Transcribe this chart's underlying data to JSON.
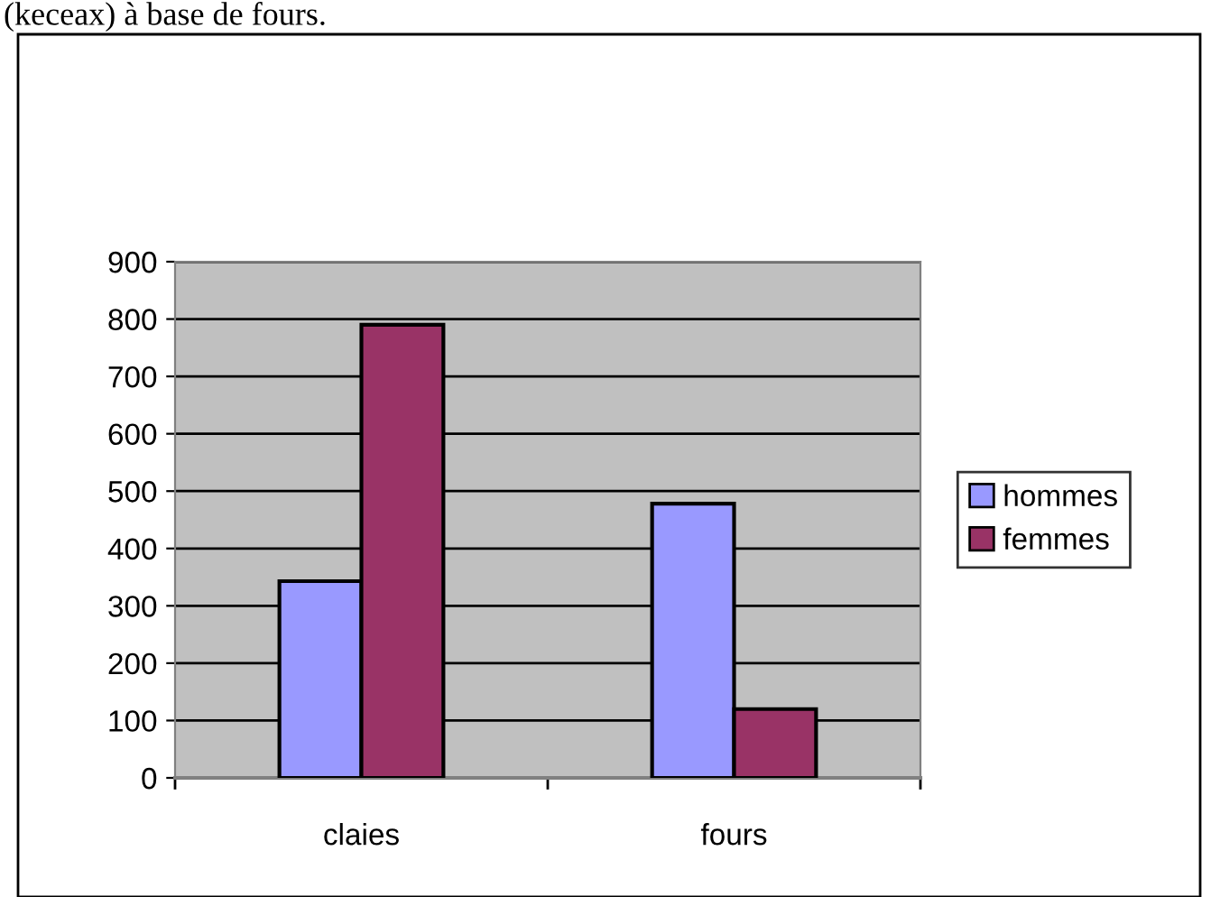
{
  "chart_data": {
    "type": "bar",
    "annotations": [
      "(keceax) à base de fours."
    ],
    "categories": [
      "claies",
      "fours"
    ],
    "series": [
      {
        "name": "hommes",
        "color": "#9999ff",
        "values": [
          343,
          478
        ]
      },
      {
        "name": "femmes",
        "color": "#993366",
        "values": [
          790,
          120
        ]
      }
    ],
    "ylim": [
      0,
      900
    ],
    "yticks": [
      0,
      100,
      200,
      300,
      400,
      500,
      600,
      700,
      800,
      900
    ],
    "grid": "y",
    "legend": "right"
  }
}
